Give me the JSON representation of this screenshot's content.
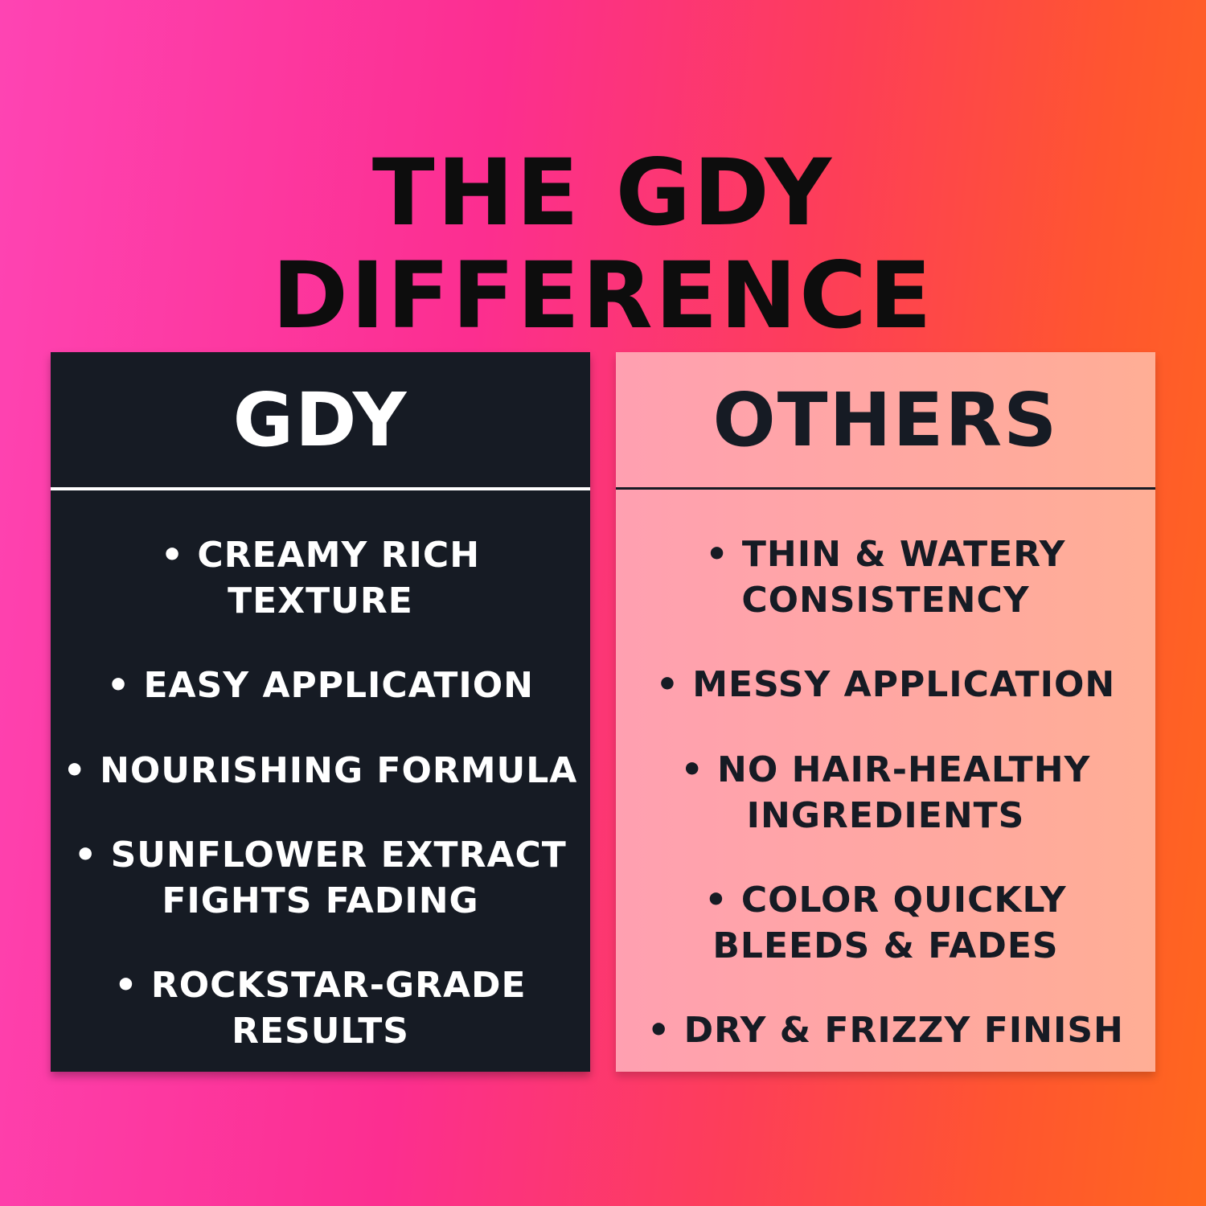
{
  "header": {
    "title_lines": [
      "THE GDY",
      "DIFFERENCE"
    ]
  },
  "bullet_char": "•",
  "colors": {
    "background_left": "#fe44b3",
    "background_mid": "#fc2e90",
    "background_right": "#ff671e",
    "dark_card": "#161b24",
    "light_card_left": "#ffa0b1",
    "light_card_right": "#ffae95",
    "title_text": "#0d0d0d",
    "dark_card_text": "#ffffff",
    "light_card_text": "#161b24"
  },
  "comparison": {
    "left_column": {
      "heading": "GDY",
      "items": [
        {
          "lines": [
            "CREAMY RICH",
            "TEXTURE"
          ]
        },
        {
          "lines": [
            "EASY APPLICATION"
          ]
        },
        {
          "lines": [
            "NOURISHING FORMULA"
          ]
        },
        {
          "lines": [
            "SUNFLOWER EXTRACT",
            "FIGHTS FADING"
          ]
        },
        {
          "lines": [
            "ROCKSTAR-GRADE",
            "RESULTS"
          ]
        }
      ]
    },
    "right_column": {
      "heading": "OTHERS",
      "items": [
        {
          "lines": [
            "THIN & WATERY",
            "CONSISTENCY"
          ]
        },
        {
          "lines": [
            "MESSY APPLICATION"
          ]
        },
        {
          "lines": [
            "NO HAIR-HEALTHY",
            "INGREDIENTS"
          ]
        },
        {
          "lines": [
            "COLOR QUICKLY",
            "BLEEDS & FADES"
          ]
        },
        {
          "lines": [
            "DRY & FRIZZY FINISH"
          ]
        }
      ]
    }
  }
}
